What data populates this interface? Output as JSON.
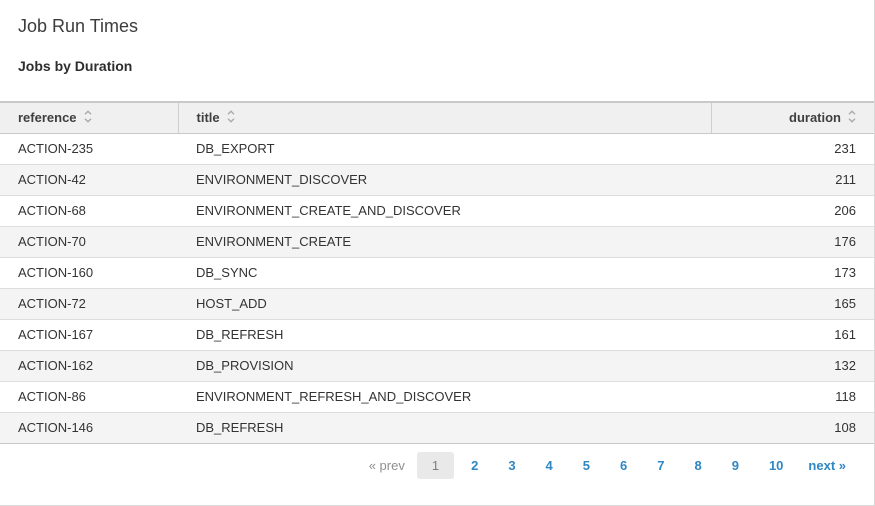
{
  "page": {
    "title": "Job Run Times",
    "subtitle": "Jobs by Duration"
  },
  "table": {
    "columns": [
      {
        "key": "reference",
        "label": "reference",
        "align": "left",
        "sortable": true
      },
      {
        "key": "title",
        "label": "title",
        "align": "left",
        "sortable": true
      },
      {
        "key": "duration",
        "label": "duration",
        "align": "right",
        "sortable": true
      }
    ],
    "rows": [
      {
        "reference": "ACTION-235",
        "title": "DB_EXPORT",
        "duration": "231"
      },
      {
        "reference": "ACTION-42",
        "title": "ENVIRONMENT_DISCOVER",
        "duration": "211"
      },
      {
        "reference": "ACTION-68",
        "title": "ENVIRONMENT_CREATE_AND_DISCOVER",
        "duration": "206"
      },
      {
        "reference": "ACTION-70",
        "title": "ENVIRONMENT_CREATE",
        "duration": "176"
      },
      {
        "reference": "ACTION-160",
        "title": "DB_SYNC",
        "duration": "173"
      },
      {
        "reference": "ACTION-72",
        "title": "HOST_ADD",
        "duration": "165"
      },
      {
        "reference": "ACTION-167",
        "title": "DB_REFRESH",
        "duration": "161"
      },
      {
        "reference": "ACTION-162",
        "title": "DB_PROVISION",
        "duration": "132"
      },
      {
        "reference": "ACTION-86",
        "title": "ENVIRONMENT_REFRESH_AND_DISCOVER",
        "duration": "118"
      },
      {
        "reference": "ACTION-146",
        "title": "DB_REFRESH",
        "duration": "108"
      }
    ]
  },
  "pagination": {
    "prev_label": "« prev",
    "next_label": "next »",
    "pages": [
      "1",
      "2",
      "3",
      "4",
      "5",
      "6",
      "7",
      "8",
      "9",
      "10"
    ],
    "current_page": "1"
  },
  "icons": {
    "sort": "sort-updown-icon"
  },
  "colors": {
    "link_blue": "#2f87c3",
    "header_bg": "#f0f0f0",
    "row_alt_bg": "#f4f4f4",
    "border_gray": "#c9c9c9",
    "row_border_gray": "#dddddd",
    "muted_gray": "#8f8f8f",
    "current_page_bg": "#e9e9e9",
    "sort_icon_gray": "#ababab"
  }
}
